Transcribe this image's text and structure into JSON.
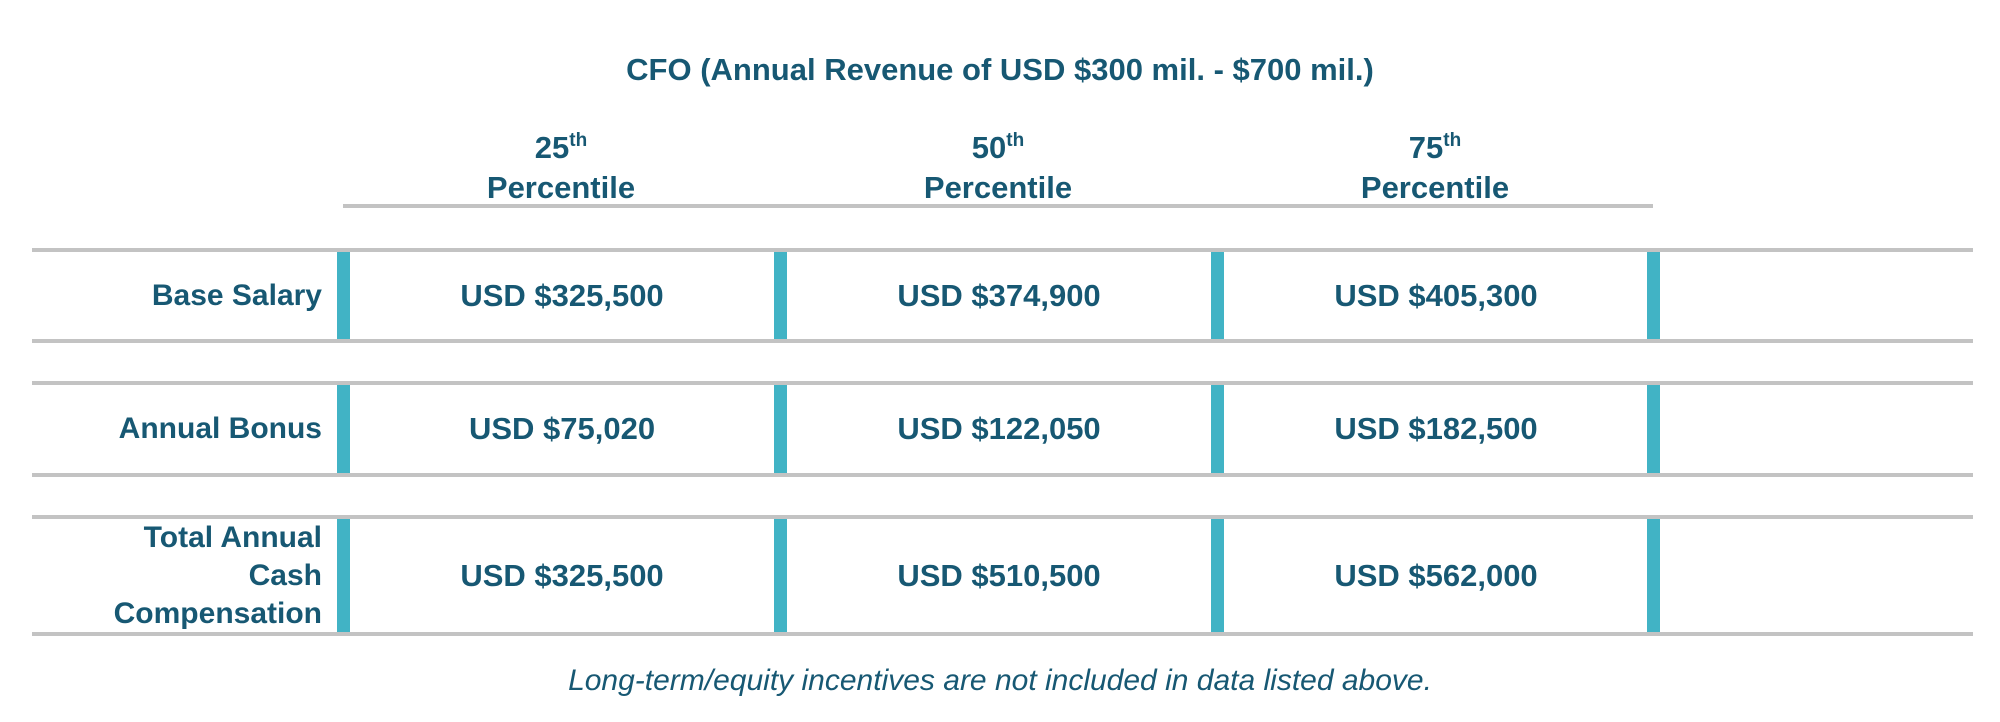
{
  "chart_data": {
    "type": "table",
    "title": "CFO (Annual Revenue of USD $300 mil. - $700 mil.)",
    "columns": [
      {
        "number": "25",
        "suffix": "th",
        "label": "Percentile"
      },
      {
        "number": "50",
        "suffix": "th",
        "label": "Percentile"
      },
      {
        "number": "75",
        "suffix": "th",
        "label": "Percentile"
      }
    ],
    "rows": [
      {
        "label": "Base Salary",
        "values": [
          "USD $325,500",
          "USD $374,900",
          "USD $405,300"
        ]
      },
      {
        "label": "Annual Bonus",
        "values": [
          "USD $75,020",
          "USD $122,050",
          "USD $182,500"
        ]
      },
      {
        "label": "Total Annual Cash Compensation",
        "label_lines": [
          "Total Annual",
          "Cash",
          "Compensation"
        ],
        "values": [
          "USD $325,500",
          "USD $510,500",
          "USD $562,000"
        ]
      }
    ],
    "footnote": "Long-term/equity incentives are not included in data listed above."
  },
  "colors": {
    "text": "#175873",
    "accent_bar": "#41b3c5",
    "rule": "#c3c3c3"
  }
}
